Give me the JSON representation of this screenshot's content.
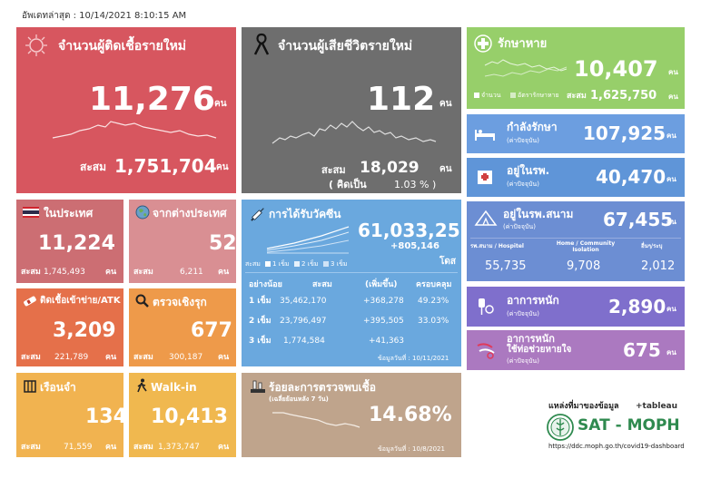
{
  "updated": "อัพเดทล่าสุด : 10/14/2021 8:10:15 AM",
  "colors": {
    "new_cases": "#d7565f",
    "deaths": "#6e6e6e",
    "domestic": "#cc6e73",
    "foreign": "#d98f93",
    "atk": "#e5704a",
    "proactive": "#ee9a4a",
    "prison": "#f1b350",
    "walkin": "#f0b84f",
    "vaccine": "#6aa8de",
    "positive": "#bfa48c",
    "recovered": "#97cf6a",
    "treating": "#6c9ee0",
    "hospital": "#5f95d8",
    "field": "#6c8ed3",
    "severe": "#7f6fcc",
    "ventilator": "#ab79c0"
  },
  "new_cases": {
    "title": "จำนวนผู้ติดเชื้อรายใหม่",
    "value": "11,276",
    "unit": "คน",
    "cum_label": "สะสม",
    "cum_value": "1,751,704",
    "cum_unit": "คน",
    "icon": "virus-icon"
  },
  "deaths": {
    "title": "จำนวนผู้เสียชีวิตรายใหม่",
    "value": "112",
    "unit": "คน",
    "cum_label": "สะสม",
    "cum_value": "18,029",
    "cum_unit": "คน",
    "pct_label": "( คิดเป็น",
    "pct_value": "1.03 % )",
    "icon": "mourning-ribbon-icon"
  },
  "domestic": {
    "title": "ในประเทศ",
    "value": "11,224",
    "cum_label": "สะสม",
    "cum_value": "1,745,493",
    "cum_unit": "คน",
    "icon": "thai-flag-icon"
  },
  "foreign": {
    "title": "จากต่างประเทศ",
    "value": "52",
    "cum_label": "สะสม",
    "cum_value": "6,211",
    "cum_unit": "คน",
    "icon": "globe-icon"
  },
  "atk": {
    "title": "ติดเชื้อเข้าข่าย/ATK",
    "value": "3,209",
    "cum_label": "สะสม",
    "cum_value": "221,789",
    "cum_unit": "คน",
    "icon": "test-kit-icon"
  },
  "proactive": {
    "title": "ตรวจเชิงรุก",
    "value": "677",
    "cum_label": "สะสม",
    "cum_value": "300,187",
    "cum_unit": "คน",
    "icon": "magnifier-icon"
  },
  "prison": {
    "title": "เรือนจำ",
    "value": "134",
    "cum_label": "สะสม",
    "cum_value": "71,559",
    "cum_unit": "คน",
    "icon": "prison-icon"
  },
  "walkin": {
    "title": "Walk-in",
    "value": "10,413",
    "cum_label": "สะสม",
    "cum_value": "1,373,747",
    "cum_unit": "คน",
    "icon": "walking-person-icon"
  },
  "vaccine": {
    "title": "การได้รับวัคซีน",
    "total": "61,033,251",
    "total_unit": "โดส",
    "increase": "+805,146",
    "legend": [
      "สะสม",
      "1 เข็ม",
      "2 เข็ม",
      "3 เข็ม"
    ],
    "headers": [
      "อย่างน้อย",
      "สะสม",
      "(เพิ่มขึ้น)",
      "ครอบคลุม"
    ],
    "rows": [
      {
        "dose": "1 เข็ม",
        "cum": "35,462,170",
        "inc": "+368,278",
        "cov": "49.23%"
      },
      {
        "dose": "2 เข็ม",
        "cum": "23,796,497",
        "inc": "+395,505",
        "cov": "33.03%"
      },
      {
        "dose": "3 เข็ม",
        "cum": "1,774,584",
        "inc": "+41,363",
        "cov": ""
      }
    ],
    "as_of": "ข้อมูลวันที่ : 10/11/2021",
    "icon": "syringe-icon"
  },
  "positive": {
    "title": "ร้อยละการตรวจพบเชื้อ",
    "subtitle": "(เฉลี่ยย้อนหลัง 7 วัน)",
    "value": "14.68%",
    "as_of": "ข้อมูลวันที่ : 10/8/2021",
    "icon": "lab-test-icon"
  },
  "recovered": {
    "title": "รักษาหาย",
    "value": "10,407",
    "unit": "คน",
    "legend_a": "จำนวน",
    "legend_b": "อัตรารักษาหาย",
    "cum_label": "สะสม",
    "cum_value": "1,625,750",
    "cum_unit": "คน",
    "icon": "medical-cross-icon"
  },
  "treating": {
    "title": "กำลังรักษา",
    "sub": "(ค่าปัจจุบัน)",
    "value": "107,925",
    "unit": "คน",
    "icon": "hospital-bed-icon"
  },
  "hospital": {
    "title": "อยู่ในรพ.",
    "sub": "(ค่าปัจจุบัน)",
    "value": "40,470",
    "unit": "คน",
    "icon": "hospital-building-icon"
  },
  "field": {
    "title": "อยู่ในรพ.สนาม",
    "sub": "(ค่าปัจจุบัน)",
    "value": "67,455",
    "unit": "คน",
    "cols": [
      {
        "label": "รพ.สนาม / Hospitel",
        "value": "55,735"
      },
      {
        "label": "Home / Community Isolation",
        "value": "9,708"
      },
      {
        "label": "อื่นๆ/ระบุ",
        "value": "2,012"
      }
    ],
    "icon": "tent-icon"
  },
  "severe": {
    "title": "อาการหนัก",
    "sub": "(ค่าปัจจุบัน)",
    "value": "2,890",
    "unit": "คน",
    "icon": "iv-drip-icon"
  },
  "ventilator": {
    "title": "อาการหนัก",
    "title2": "ใช้ท่อช่วยหายใจ",
    "sub": "(ค่าปัจจุบัน)",
    "value": "675",
    "unit": "คน",
    "icon": "ventilator-icon"
  },
  "source": {
    "label": "แหล่งที่มาของข้อมูล",
    "tableau": "+tableau",
    "org": "SAT - MOPH",
    "url": "https://ddc.moph.go.th/covid19-dashboard",
    "icon": "moph-logo-icon"
  }
}
